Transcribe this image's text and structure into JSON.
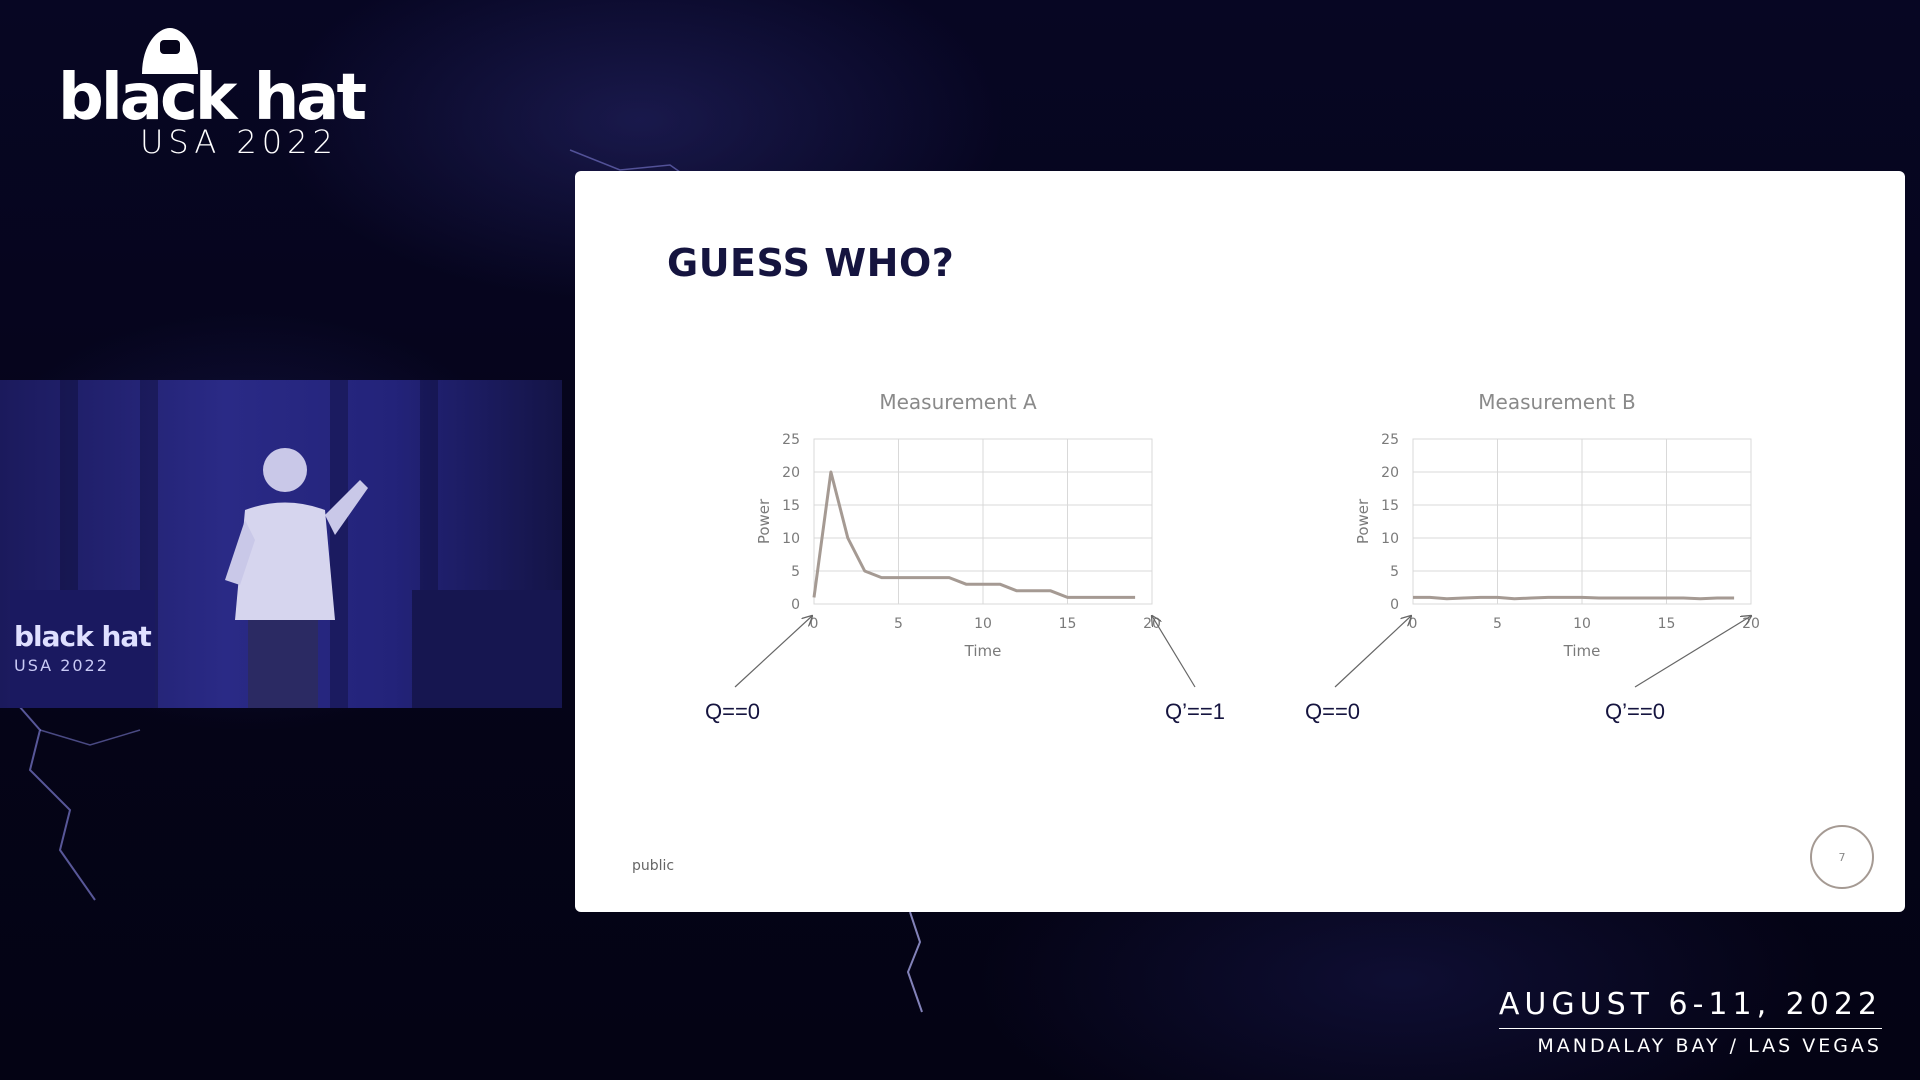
{
  "logo": {
    "word": "black hat",
    "sub": "USA 2022"
  },
  "slide": {
    "title": "GUESS WHO?",
    "footer_label": "public",
    "page_number": "7"
  },
  "event": {
    "date": "AUGUST 6-11, 2022",
    "venue": "MANDALAY BAY / LAS VEGAS"
  },
  "stage": {
    "logo_word": "black hat",
    "logo_sub": "USA 2022"
  },
  "chart_data": [
    {
      "type": "line",
      "title": "Measurement A",
      "xlabel": "Time",
      "ylabel": "Power",
      "xlim": [
        0,
        20
      ],
      "ylim": [
        0,
        25
      ],
      "xticks": [
        0,
        5,
        10,
        15,
        20
      ],
      "yticks": [
        0,
        5,
        10,
        15,
        20,
        25
      ],
      "grid": true,
      "x": [
        0,
        1,
        2,
        3,
        4,
        5,
        6,
        7,
        8,
        9,
        10,
        11,
        12,
        13,
        14,
        15,
        16,
        17,
        18,
        19
      ],
      "values": [
        1,
        20,
        10,
        5,
        4,
        4,
        4,
        4,
        4,
        3,
        3,
        3,
        2,
        2,
        2,
        1,
        1,
        1,
        1,
        1
      ],
      "annotations": [
        {
          "text": "Q==0",
          "points_to_x": 0
        },
        {
          "text": "Q’==1",
          "points_to_x": 20
        }
      ]
    },
    {
      "type": "line",
      "title": "Measurement B",
      "xlabel": "Time",
      "ylabel": "Power",
      "xlim": [
        0,
        20
      ],
      "ylim": [
        0,
        25
      ],
      "xticks": [
        0,
        5,
        10,
        15,
        20
      ],
      "yticks": [
        0,
        5,
        10,
        15,
        20,
        25
      ],
      "grid": true,
      "x": [
        0,
        1,
        2,
        3,
        4,
        5,
        6,
        7,
        8,
        9,
        10,
        11,
        12,
        13,
        14,
        15,
        16,
        17,
        18,
        19
      ],
      "values": [
        1,
        1,
        0.8,
        0.9,
        1,
        1,
        0.8,
        0.9,
        1,
        1,
        1,
        0.9,
        0.9,
        0.9,
        0.9,
        0.9,
        0.9,
        0.8,
        0.9,
        0.9
      ],
      "annotations": [
        {
          "text": "Q==0",
          "points_to_x": 0
        },
        {
          "text": "Q’==0",
          "points_to_x": 20
        }
      ]
    }
  ]
}
